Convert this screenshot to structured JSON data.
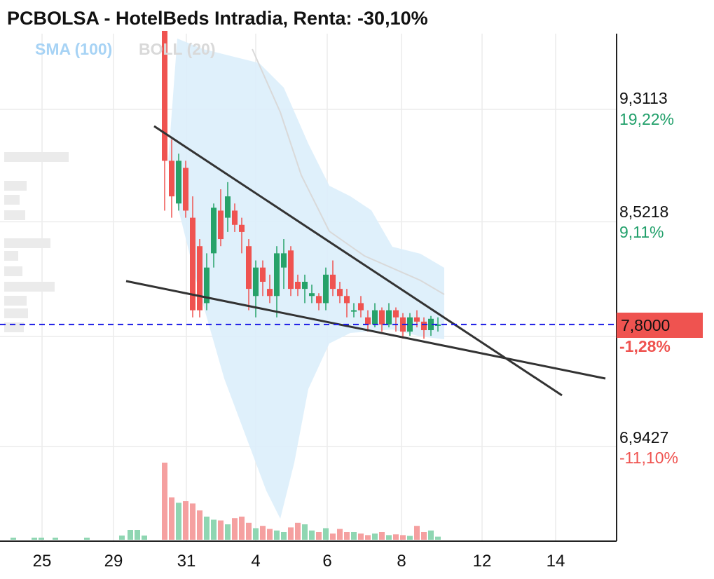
{
  "chart_data": {
    "type": "candlestick",
    "title": "PCBOLSA - HotelBeds Intradia, Renta: -30,10%",
    "indicators": [
      {
        "name": "SMA (100)",
        "color": "#a7d3f5"
      },
      {
        "name": "BOLL (20)",
        "color": "#d9d9d9"
      }
    ],
    "x_ticks": [
      "25",
      "29",
      "31",
      "4",
      "6",
      "8",
      "12",
      "14"
    ],
    "y_ticks": [
      {
        "value": 9.3113,
        "label": "9,3113",
        "pct": "19,22%",
        "pct_color": "#22a06b"
      },
      {
        "value": 8.5218,
        "label": "8,5218",
        "pct": "9,11%",
        "pct_color": "#22a06b"
      },
      {
        "value": 6.9427,
        "label": "6,9427",
        "pct": "-11,10%",
        "pct_color": "#ef5350"
      }
    ],
    "last_price": {
      "value": 7.8,
      "label": "7,8000",
      "pct": "-1,28%",
      "color": "#ef5350"
    },
    "colors": {
      "up": "#26a269",
      "down": "#ef5350",
      "band": "#dceefb",
      "sma": "#d9d9d9",
      "last_line": "#1a1ae6",
      "trendline": "#333333"
    },
    "candles": [
      {
        "o": 10.1,
        "h": 10.2,
        "l": 8.6,
        "c": 8.95
      },
      {
        "o": 8.95,
        "h": 9.1,
        "l": 8.55,
        "c": 8.7
      },
      {
        "o": 8.65,
        "h": 9.0,
        "l": 8.6,
        "c": 8.95
      },
      {
        "o": 8.9,
        "h": 8.95,
        "l": 8.55,
        "c": 8.6
      },
      {
        "o": 8.55,
        "h": 8.7,
        "l": 7.85,
        "c": 7.9
      },
      {
        "o": 8.35,
        "h": 8.4,
        "l": 7.85,
        "c": 7.9
      },
      {
        "o": 7.95,
        "h": 8.3,
        "l": 7.9,
        "c": 8.2
      },
      {
        "o": 8.3,
        "h": 8.65,
        "l": 8.2,
        "c": 8.62
      },
      {
        "o": 8.6,
        "h": 8.75,
        "l": 8.35,
        "c": 8.4
      },
      {
        "o": 8.55,
        "h": 8.8,
        "l": 8.45,
        "c": 8.7
      },
      {
        "o": 8.6,
        "h": 8.65,
        "l": 8.45,
        "c": 8.5
      },
      {
        "o": 8.5,
        "h": 8.55,
        "l": 8.3,
        "c": 8.45
      },
      {
        "o": 8.35,
        "h": 8.4,
        "l": 7.9,
        "c": 8.05
      },
      {
        "o": 8.0,
        "h": 8.25,
        "l": 7.85,
        "c": 8.2
      },
      {
        "o": 8.2,
        "h": 8.25,
        "l": 8.0,
        "c": 8.1
      },
      {
        "o": 8.05,
        "h": 8.15,
        "l": 7.95,
        "c": 8.0
      },
      {
        "o": 8.0,
        "h": 8.35,
        "l": 7.85,
        "c": 8.3
      },
      {
        "o": 8.2,
        "h": 8.4,
        "l": 8.05,
        "c": 8.3
      },
      {
        "o": 8.32,
        "h": 8.35,
        "l": 8.0,
        "c": 8.05
      },
      {
        "o": 8.1,
        "h": 8.15,
        "l": 8.0,
        "c": 8.05
      },
      {
        "o": 8.05,
        "h": 8.15,
        "l": 7.95,
        "c": 8.1
      },
      {
        "o": 8.0,
        "h": 8.08,
        "l": 7.95,
        "c": 8.02
      },
      {
        "o": 8.0,
        "h": 8.02,
        "l": 7.9,
        "c": 7.95
      },
      {
        "o": 7.95,
        "h": 8.2,
        "l": 7.9,
        "c": 8.15
      },
      {
        "o": 8.15,
        "h": 8.25,
        "l": 8.0,
        "c": 8.05
      },
      {
        "o": 8.05,
        "h": 8.1,
        "l": 7.95,
        "c": 8.0
      },
      {
        "o": 8.0,
        "h": 8.05,
        "l": 7.85,
        "c": 7.95
      },
      {
        "o": 7.9,
        "h": 7.95,
        "l": 7.85,
        "c": 7.9
      },
      {
        "o": 7.95,
        "h": 8.0,
        "l": 7.85,
        "c": 7.9
      },
      {
        "o": 7.85,
        "h": 7.9,
        "l": 7.75,
        "c": 7.8
      },
      {
        "o": 7.8,
        "h": 7.95,
        "l": 7.78,
        "c": 7.9
      },
      {
        "o": 7.9,
        "h": 7.92,
        "l": 7.75,
        "c": 7.8
      },
      {
        "o": 7.8,
        "h": 7.95,
        "l": 7.78,
        "c": 7.9
      },
      {
        "o": 7.9,
        "h": 7.92,
        "l": 7.75,
        "c": 7.85
      },
      {
        "o": 7.85,
        "h": 7.88,
        "l": 7.7,
        "c": 7.75
      },
      {
        "o": 7.75,
        "h": 7.88,
        "l": 7.72,
        "c": 7.85
      },
      {
        "o": 7.85,
        "h": 7.9,
        "l": 7.78,
        "c": 7.82
      },
      {
        "o": 7.82,
        "h": 7.85,
        "l": 7.7,
        "c": 7.76
      },
      {
        "o": 7.76,
        "h": 7.86,
        "l": 7.72,
        "c": 7.84
      },
      {
        "o": 7.8,
        "h": 7.85,
        "l": 7.75,
        "c": 7.8
      }
    ],
    "volumes": [
      1.0,
      0.55,
      0.48,
      0.5,
      0.47,
      0.38,
      0.3,
      0.26,
      0.25,
      0.2,
      0.28,
      0.3,
      0.22,
      0.15,
      0.18,
      0.14,
      0.12,
      0.1,
      0.16,
      0.22,
      0.2,
      0.12,
      0.1,
      0.15,
      0.08,
      0.14,
      0.1,
      0.1,
      0.08,
      0.06,
      0.08,
      0.1,
      0.06,
      0.07,
      0.06,
      0.05,
      0.18,
      0.1,
      0.12,
      0.04
    ]
  }
}
